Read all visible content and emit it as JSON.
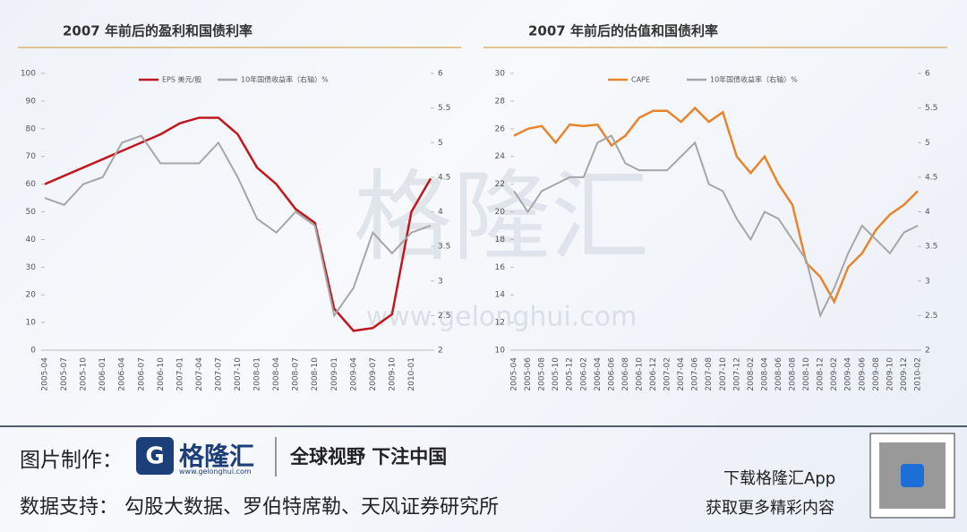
{
  "chart_data": [
    {
      "type": "line",
      "title": "2007 年前后的盈利和国债利率",
      "categories": [
        "2005-04",
        "2005-07",
        "2005-10",
        "2006-01",
        "2006-04",
        "2006-07",
        "2006-10",
        "2007-01",
        "2007-04",
        "2007-07",
        "2007-10",
        "2008-01",
        "2008-04",
        "2008-07",
        "2008-10",
        "2009-01",
        "2009-04",
        "2009-07",
        "2009-10",
        "2010-01",
        null
      ],
      "series": [
        {
          "name": "EPS 美元/股",
          "color": "#c0181e",
          "values": [
            60,
            63,
            66,
            69,
            72,
            75,
            78,
            82,
            84,
            84,
            78,
            66,
            60,
            51,
            46,
            15,
            7,
            8,
            13,
            50,
            62
          ]
        },
        {
          "name": "10年国债收益率（右轴）%",
          "color": "#a6a6a6",
          "axis": "y2",
          "values": [
            4.2,
            4.1,
            4.4,
            4.5,
            5.0,
            5.1,
            4.7,
            4.7,
            4.7,
            5.0,
            4.5,
            3.9,
            3.7,
            4.0,
            3.8,
            2.5,
            2.9,
            3.7,
            3.4,
            3.7,
            3.8
          ]
        }
      ],
      "ylim": [
        0,
        100
      ],
      "yticks": [
        0,
        10,
        20,
        30,
        40,
        50,
        60,
        70,
        80,
        90,
        100
      ],
      "y2lim": [
        2,
        6
      ],
      "y2ticks": [
        2,
        2.5,
        3,
        3.5,
        4,
        4.5,
        5,
        5.5,
        6
      ]
    },
    {
      "type": "line",
      "title": "2007 年前后的估值和国债利率",
      "categories": [
        "2005-04",
        "2005-06",
        "2005-08",
        "2005-10",
        "2005-12",
        "2006-02",
        "2006-04",
        "2006-06",
        "2006-08",
        "2006-10",
        "2006-12",
        "2007-02",
        "2007-04",
        "2007-06",
        "2007-08",
        "2007-10",
        "2007-12",
        "2008-02",
        "2008-04",
        "2008-06",
        "2008-08",
        "2008-10",
        "2008-12",
        "2009-02",
        "2009-04",
        "2009-06",
        "2009-08",
        "2009-10",
        "2009-12",
        "2010-02"
      ],
      "series": [
        {
          "name": "CAPE",
          "color": "#e8842c",
          "values": [
            25.5,
            26,
            26.2,
            25,
            26.3,
            26.2,
            26.3,
            24.8,
            25.5,
            26.8,
            27.3,
            27.3,
            26.5,
            27.5,
            26.5,
            27.2,
            24,
            22.8,
            24,
            22,
            20.5,
            16.3,
            15.3,
            13.5,
            16,
            17,
            18.7,
            19.8,
            20.5,
            21.5
          ]
        },
        {
          "name": "10年国债收益率（右轴）%",
          "color": "#a6a6a6",
          "axis": "y2",
          "values": [
            4.3,
            4.0,
            4.3,
            4.4,
            4.5,
            4.5,
            5.0,
            5.1,
            4.7,
            4.6,
            4.6,
            4.6,
            4.8,
            5.0,
            4.4,
            4.3,
            3.9,
            3.6,
            4.0,
            3.9,
            3.6,
            3.3,
            2.5,
            2.9,
            3.4,
            3.8,
            3.6,
            3.4,
            3.7,
            3.8
          ]
        }
      ],
      "ylim": [
        10,
        30
      ],
      "yticks": [
        10,
        12,
        14,
        16,
        18,
        20,
        22,
        24,
        26,
        28,
        30
      ],
      "y2lim": [
        2,
        6
      ],
      "y2ticks": [
        2,
        2.5,
        3,
        3.5,
        4,
        4.5,
        5,
        5.5,
        6
      ]
    }
  ],
  "watermark": {
    "logo": "格隆汇",
    "url": "www.gelonghui.com"
  },
  "footer": {
    "made_by": "图片制作：",
    "logo": "格隆汇",
    "logo_url": "www.gelonghui.com",
    "slogan": "全球视野 下注中国",
    "source": "数据支持： 勾股大数据、罗伯特席勒、天风证券研究所",
    "app": "下载格隆汇App",
    "more": "获取更多精彩内容"
  }
}
